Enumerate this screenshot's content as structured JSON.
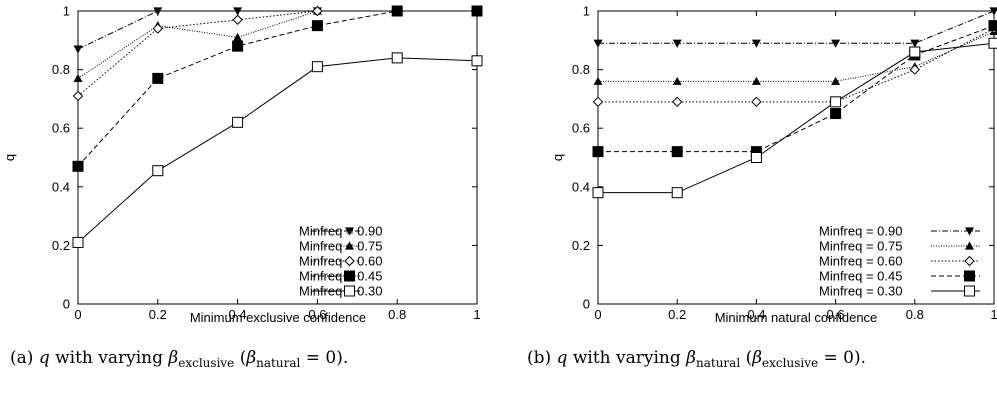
{
  "chart_data": [
    {
      "type": "line",
      "xlabel": "Minimum exclusive confidence",
      "ylabel": "q",
      "xlim": [
        0,
        1
      ],
      "ylim": [
        0,
        1
      ],
      "x_ticks": [
        "0",
        "0.2",
        "0.4",
        "0.6",
        "0.8",
        "1"
      ],
      "y_ticks": [
        "0",
        "0.2",
        "0.4",
        "0.6",
        "0.8",
        "1"
      ],
      "grid": false,
      "legend_position": "bottom-right",
      "caption": {
        "prefix": "(a) ",
        "var": "q",
        "mid": " with varying ",
        "beta1": "β",
        "sub1": "exclusive",
        "mid2": " (",
        "beta2": "β",
        "sub2": "natural",
        "suffix": " = 0)."
      },
      "x": [
        0,
        0.2,
        0.4,
        0.6,
        0.8,
        1
      ],
      "series": [
        {
          "name": "Minfreq = 0.90",
          "marker": "triangle-down-filled",
          "dash": "dashdot",
          "values": [
            0.87,
            1.0,
            1.0,
            1.0,
            1.0,
            1.0
          ]
        },
        {
          "name": "Minfreq = 0.75",
          "marker": "triangle-up-filled",
          "dash": "dotted-fine",
          "values": [
            0.77,
            0.95,
            0.91,
            1.0,
            1.0,
            1.0
          ]
        },
        {
          "name": "Minfreq = 0.60",
          "marker": "diamond-open",
          "dash": "dotted",
          "values": [
            0.71,
            0.94,
            0.97,
            1.0,
            1.0,
            1.0
          ]
        },
        {
          "name": "Minfreq = 0.45",
          "marker": "square-filled",
          "dash": "dashed",
          "values": [
            0.47,
            0.77,
            0.88,
            0.95,
            1.0,
            1.0
          ]
        },
        {
          "name": "Minfreq = 0.30",
          "marker": "square-open",
          "dash": "solid",
          "values": [
            0.21,
            0.455,
            0.62,
            0.81,
            0.84,
            0.83
          ]
        }
      ]
    },
    {
      "type": "line",
      "xlabel": "Minimum natural confidence",
      "ylabel": "q",
      "xlim": [
        0,
        1
      ],
      "ylim": [
        0,
        1
      ],
      "x_ticks": [
        "0",
        "0.2",
        "0.4",
        "0.6",
        "0.8",
        "1"
      ],
      "y_ticks": [
        "0",
        "0.2",
        "0.4",
        "0.6",
        "0.8",
        "1"
      ],
      "grid": false,
      "legend_position": "bottom-right",
      "caption": {
        "prefix": "(b) ",
        "var": "q",
        "mid": " with varying ",
        "beta1": "β",
        "sub1": "natural",
        "mid2": " (",
        "beta2": "β",
        "sub2": "exclusive",
        "suffix": " = 0)."
      },
      "x": [
        0,
        0.2,
        0.4,
        0.6,
        0.8,
        1
      ],
      "series": [
        {
          "name": "Minfreq = 0.90",
          "marker": "triangle-down-filled",
          "dash": "dashdot",
          "values": [
            0.89,
            0.89,
            0.89,
            0.89,
            0.89,
            1.0
          ]
        },
        {
          "name": "Minfreq = 0.75",
          "marker": "triangle-up-filled",
          "dash": "dotted-fine",
          "values": [
            0.76,
            0.76,
            0.76,
            0.76,
            0.81,
            0.93
          ]
        },
        {
          "name": "Minfreq = 0.60",
          "marker": "diamond-open",
          "dash": "dotted",
          "values": [
            0.69,
            0.69,
            0.69,
            0.69,
            0.8,
            0.94
          ]
        },
        {
          "name": "Minfreq = 0.45",
          "marker": "square-filled",
          "dash": "dashed",
          "values": [
            0.52,
            0.52,
            0.52,
            0.65,
            0.85,
            0.95
          ]
        },
        {
          "name": "Minfreq = 0.30",
          "marker": "square-open",
          "dash": "solid",
          "values": [
            0.38,
            0.38,
            0.5,
            0.69,
            0.86,
            0.89
          ]
        }
      ]
    }
  ]
}
